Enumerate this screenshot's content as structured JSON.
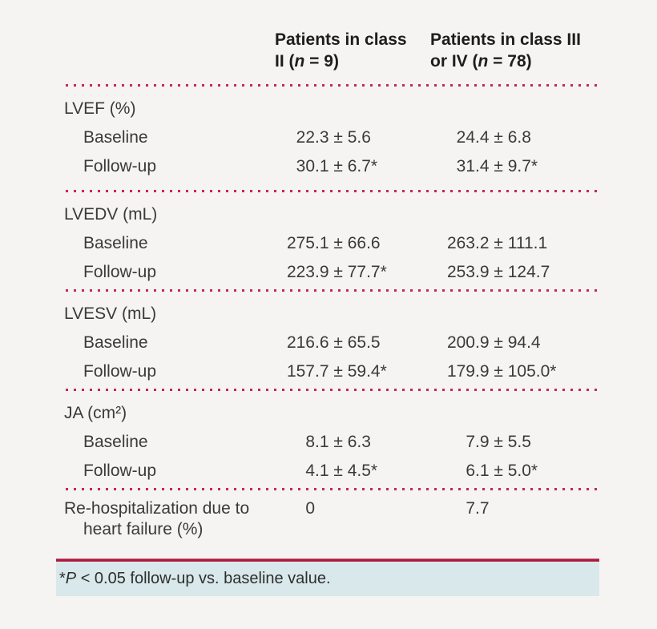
{
  "colors": {
    "page_bg": "#f5f4f2",
    "dot_line": "#c22a53",
    "accent_line": "#a8193d",
    "footnote_bg": "#d9e8ea",
    "text": "#3a3a3a",
    "header_text": "#1d1d1d"
  },
  "table": {
    "header": {
      "col1": {
        "line1": "Patients in class",
        "line2_pre": "II (",
        "n": "n",
        "line2_post": " = 9)"
      },
      "col2": {
        "line1": "Patients in class III",
        "line2_pre": "or IV (",
        "n": "n",
        "line2_post": " = 78)"
      }
    },
    "sections": [
      {
        "label": "LVEF (%)",
        "rows": [
          {
            "label": "Baseline",
            "c1i": "22",
            "c1r": ".3 ± 5.6",
            "c2i": "24",
            "c2r": ".4 ± 6.8"
          },
          {
            "label": "Follow-up",
            "c1i": "30",
            "c1r": ".1 ± 6.7*",
            "c2i": "31",
            "c2r": ".4 ± 9.7*"
          }
        ]
      },
      {
        "label": "LVEDV (mL)",
        "rows": [
          {
            "label": "Baseline",
            "c1i": "275",
            "c1r": ".1 ± 66.6",
            "c2i": "263",
            "c2r": ".2 ± 111.1"
          },
          {
            "label": "Follow-up",
            "c1i": "223",
            "c1r": ".9 ± 77.7*",
            "c2i": "253",
            "c2r": ".9 ± 124.7"
          }
        ]
      },
      {
        "label": "LVESV (mL)",
        "rows": [
          {
            "label": "Baseline",
            "c1i": "216",
            "c1r": ".6 ± 65.5",
            "c2i": "200",
            "c2r": ".9 ± 94.4"
          },
          {
            "label": "Follow-up",
            "c1i": "157",
            "c1r": ".7 ± 59.4*",
            "c2i": "179",
            "c2r": ".9 ± 105.0*"
          }
        ]
      },
      {
        "label": "JA (cm²)",
        "rows": [
          {
            "label": "Baseline",
            "c1i": "8",
            "c1r": ".1 ± 6.3",
            "c2i": "7",
            "c2r": ".9 ± 5.5"
          },
          {
            "label": "Follow-up",
            "c1i": "4",
            "c1r": ".1 ± 4.5*",
            "c2i": "6",
            "c2r": ".1 ± 5.0*"
          }
        ]
      }
    ],
    "last_row": {
      "label": "Re-hospitalization due to heart failure (%)",
      "c1i": "0",
      "c1r": "",
      "c2i": "7",
      "c2r": ".7"
    }
  },
  "footnote": {
    "star": "*",
    "p": "P",
    "rest": " < 0.05 follow-up vs. baseline value."
  }
}
